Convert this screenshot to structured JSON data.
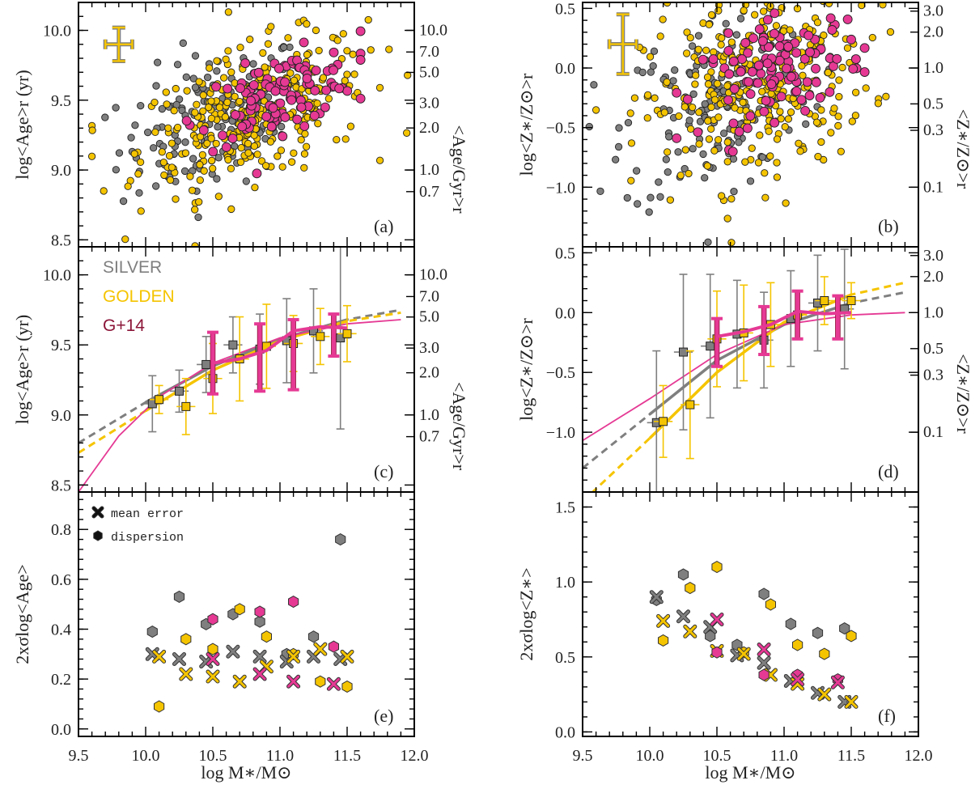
{
  "figure": {
    "xlabel": "log M∗/M⊙",
    "colors": {
      "silver": "#7f7f7f",
      "golden": "#f5c400",
      "g14": "#e53994",
      "g14_label": "#8b1538"
    }
  },
  "chart_data": [
    {
      "id": "a",
      "type": "scatter",
      "panel_label": "(a)",
      "xlim": [
        9.5,
        12.0
      ],
      "ylim": [
        8.45,
        10.2
      ],
      "ylabel": "log<Age>r (yr)",
      "ylabel_right": "<Age/Gyr>r",
      "yticks": [
        "8.5",
        "9.0",
        "9.5",
        "10.0"
      ],
      "right_ticks": [
        "0.7",
        "1.0",
        "2.0",
        "3.0",
        "5.0",
        "7.0",
        "10.0"
      ],
      "typical_error": {
        "x": 9.8,
        "y": 9.9,
        "xerr": 0.1,
        "yerr": 0.12
      },
      "clouds": [
        {
          "name": "SILVER",
          "n": 150,
          "x": [
            9.6,
            11.5
          ],
          "center": [
            10.5,
            9.35
          ],
          "spread": [
            0.35,
            0.25
          ]
        },
        {
          "name": "GOLDEN",
          "n": 320,
          "x": [
            9.6,
            11.95
          ],
          "center": [
            10.8,
            9.4
          ],
          "spread": [
            0.42,
            0.24
          ]
        },
        {
          "name": "G+14",
          "n": 110,
          "x": [
            10.1,
            11.6
          ],
          "center": [
            11.0,
            9.55
          ],
          "spread": [
            0.3,
            0.13
          ]
        }
      ]
    },
    {
      "id": "b",
      "type": "scatter",
      "panel_label": "(b)",
      "xlim": [
        9.5,
        12.0
      ],
      "ylim": [
        -1.5,
        0.55
      ],
      "ylabel": "log<Z∗/Z⊙>r",
      "ylabel_right": "<Z∗/Z⊙>r",
      "yticks": [
        "−1.0",
        "−0.5",
        "0.0",
        "0.5"
      ],
      "right_ticks": [
        "0.1",
        "0.3",
        "0.5",
        "1.0",
        "2.0",
        "3.0"
      ],
      "typical_error": {
        "x": 9.8,
        "y": 0.2,
        "xerr": 0.1,
        "yerr": 0.25
      },
      "clouds": [
        {
          "name": "SILVER",
          "n": 150,
          "x": [
            9.55,
            11.5
          ],
          "center": [
            10.5,
            -0.3
          ],
          "spread": [
            0.35,
            0.4
          ]
        },
        {
          "name": "GOLDEN",
          "n": 320,
          "x": [
            9.6,
            11.95
          ],
          "center": [
            10.8,
            -0.15
          ],
          "spread": [
            0.42,
            0.4
          ]
        },
        {
          "name": "G+14",
          "n": 110,
          "x": [
            10.2,
            11.6
          ],
          "center": [
            11.0,
            0.0
          ],
          "spread": [
            0.3,
            0.2
          ]
        }
      ]
    },
    {
      "id": "c",
      "type": "line",
      "panel_label": "(c)",
      "xlim": [
        9.5,
        12.0
      ],
      "ylim": [
        8.45,
        10.2
      ],
      "ylabel": "log<Age>r (yr)",
      "ylabel_right": "<Age/Gyr>r",
      "yticks": [
        "8.5",
        "9.0",
        "9.5",
        "10.0"
      ],
      "right_ticks": [
        "0.7",
        "1.0",
        "2.0",
        "3.0",
        "5.0",
        "7.0",
        "10.0"
      ],
      "legend": [
        "SILVER",
        "GOLDEN",
        "G+14"
      ],
      "series": [
        {
          "name": "SILVER",
          "x": [
            10.05,
            10.25,
            10.45,
            10.65,
            10.85,
            11.05,
            11.25,
            11.45
          ],
          "y": [
            9.08,
            9.17,
            9.36,
            9.5,
            9.47,
            9.53,
            9.6,
            9.55
          ],
          "yerr": [
            0.2,
            0.15,
            0.2,
            0.2,
            0.25,
            0.3,
            0.3,
            0.65
          ]
        },
        {
          "name": "GOLDEN",
          "x": [
            10.1,
            10.3,
            10.5,
            10.7,
            10.9,
            11.1,
            11.3,
            11.5
          ],
          "y": [
            9.11,
            9.06,
            9.26,
            9.4,
            9.49,
            9.51,
            9.56,
            9.58
          ],
          "yerr": [
            0.1,
            0.2,
            0.25,
            0.3,
            0.3,
            0.2,
            0.2,
            0.2
          ]
        },
        {
          "name": "G+14",
          "x": [
            10.5,
            10.85,
            11.1,
            11.4
          ],
          "y": [
            9.37,
            9.41,
            9.43,
            9.57
          ],
          "yerr": [
            0.22,
            0.24,
            0.25,
            0.15
          ]
        },
        {
          "name": "G+14 mean",
          "x": [
            10.5,
            10.7,
            10.9,
            11.1,
            11.3,
            11.5
          ],
          "y": [
            9.37,
            9.4,
            9.46,
            9.6,
            9.63,
            9.62
          ]
        },
        {
          "name": "SILVER fit",
          "x": [
            9.5,
            10.0,
            10.5,
            11.0,
            11.5,
            11.9
          ],
          "y": [
            8.8,
            9.09,
            9.35,
            9.54,
            9.68,
            9.75
          ]
        },
        {
          "name": "GOLDEN fit",
          "x": [
            9.5,
            10.0,
            10.5,
            11.0,
            11.5,
            11.9
          ],
          "y": [
            8.73,
            9.03,
            9.32,
            9.53,
            9.67,
            9.73
          ]
        },
        {
          "name": "G+14 fit",
          "x": [
            9.5,
            9.8,
            10.1,
            10.5,
            11.0,
            11.5,
            11.9
          ],
          "y": [
            8.45,
            8.85,
            9.13,
            9.37,
            9.55,
            9.65,
            9.68
          ]
        }
      ]
    },
    {
      "id": "d",
      "type": "line",
      "panel_label": "(d)",
      "xlim": [
        9.5,
        12.0
      ],
      "ylim": [
        -1.5,
        0.55
      ],
      "ylabel": "log<Z∗/Z⊙>r",
      "ylabel_right": "<Z∗/Z⊙>r",
      "yticks": [
        "−1.0",
        "−0.5",
        "0.0",
        "0.5"
      ],
      "right_ticks": [
        "0.1",
        "0.3",
        "0.5",
        "1.0",
        "2.0",
        "3.0"
      ],
      "series": [
        {
          "name": "SILVER",
          "x": [
            10.05,
            10.25,
            10.45,
            10.65,
            10.85,
            11.05,
            11.25,
            11.45
          ],
          "y": [
            -0.92,
            -0.33,
            -0.28,
            -0.18,
            -0.23,
            -0.05,
            0.08,
            0.03
          ],
          "yerr": [
            0.6,
            0.65,
            0.6,
            0.45,
            0.4,
            0.4,
            0.4,
            0.5
          ]
        },
        {
          "name": "GOLDEN",
          "x": [
            10.1,
            10.3,
            10.5,
            10.7,
            10.9,
            11.1,
            11.3,
            11.5
          ],
          "y": [
            -0.91,
            -0.77,
            -0.22,
            -0.17,
            -0.1,
            -0.02,
            0.1,
            0.1
          ],
          "yerr": [
            0.3,
            0.45,
            0.4,
            0.4,
            0.35,
            0.2,
            0.2,
            0.15
          ]
        },
        {
          "name": "G+14",
          "x": [
            10.5,
            10.85,
            11.1,
            11.4
          ],
          "y": [
            -0.25,
            -0.15,
            -0.02,
            -0.04
          ],
          "yerr": [
            0.2,
            0.2,
            0.2,
            0.18
          ]
        },
        {
          "name": "G+14 mean",
          "x": [
            10.5,
            10.7,
            10.9,
            11.1,
            11.3,
            11.5
          ],
          "y": [
            -0.2,
            -0.16,
            -0.1,
            0.01,
            -0.01,
            0.0
          ]
        },
        {
          "name": "SILVER fit",
          "x": [
            9.5,
            10.0,
            10.5,
            11.0,
            11.5,
            11.9
          ],
          "y": [
            -1.3,
            -0.85,
            -0.4,
            -0.1,
            0.08,
            0.17
          ]
        },
        {
          "name": "GOLDEN fit",
          "x": [
            9.5,
            10.0,
            10.5,
            11.0,
            11.5,
            11.9
          ],
          "y": [
            -1.58,
            -1.05,
            -0.5,
            -0.08,
            0.15,
            0.25
          ]
        },
        {
          "name": "G+14 fit",
          "x": [
            9.5,
            10.0,
            10.5,
            11.0,
            11.5,
            11.9
          ],
          "y": [
            -1.07,
            -0.72,
            -0.35,
            -0.1,
            -0.02,
            0.0
          ]
        }
      ]
    },
    {
      "id": "e",
      "type": "scatter",
      "panel_label": "(e)",
      "xlim": [
        9.5,
        12.0
      ],
      "ylim": [
        -0.03,
        0.95
      ],
      "ylabel": "2xσlog<Age>",
      "yticks": [
        "0.0",
        "0.2",
        "0.4",
        "0.6",
        "0.8"
      ],
      "legend": [
        "mean error",
        "dispersion"
      ],
      "series": [
        {
          "name": "SILVER",
          "x": [
            10.05,
            10.25,
            10.45,
            10.65,
            10.85,
            11.05,
            11.25,
            11.45
          ],
          "dispersion": [
            0.39,
            0.53,
            0.42,
            0.46,
            0.43,
            0.3,
            0.37,
            0.76
          ],
          "mean_error": [
            0.3,
            0.28,
            0.27,
            0.31,
            0.29,
            0.27,
            0.29,
            0.28
          ]
        },
        {
          "name": "GOLDEN",
          "x": [
            10.1,
            10.3,
            10.5,
            10.7,
            10.9,
            11.1,
            11.3,
            11.5
          ],
          "dispersion": [
            0.09,
            0.36,
            0.32,
            0.48,
            0.37,
            0.3,
            0.19,
            0.17
          ],
          "mean_error": [
            0.29,
            0.22,
            0.21,
            0.19,
            0.25,
            0.29,
            0.32,
            0.29
          ]
        },
        {
          "name": "G+14",
          "x": [
            10.5,
            10.85,
            11.1,
            11.4
          ],
          "dispersion": [
            0.44,
            0.47,
            0.51,
            0.33
          ],
          "mean_error": [
            0.28,
            0.22,
            0.19,
            0.18
          ]
        }
      ]
    },
    {
      "id": "f",
      "type": "scatter",
      "panel_label": "(f)",
      "xlim": [
        9.5,
        12.0
      ],
      "ylim": [
        -0.03,
        1.6
      ],
      "ylabel": "2xσlog<Z∗>",
      "yticks": [
        "0.0",
        "0.5",
        "1.0",
        "1.5"
      ],
      "series": [
        {
          "name": "SILVER",
          "x": [
            10.05,
            10.25,
            10.45,
            10.65,
            10.85,
            11.05,
            11.25,
            11.45
          ],
          "dispersion": [
            0.88,
            1.05,
            0.64,
            0.58,
            0.92,
            0.72,
            0.66,
            0.69
          ],
          "mean_error": [
            0.9,
            0.77,
            0.7,
            0.51,
            0.46,
            0.34,
            0.26,
            0.2
          ]
        },
        {
          "name": "GOLDEN",
          "x": [
            10.1,
            10.3,
            10.5,
            10.7,
            10.9,
            11.1,
            11.3,
            11.5
          ],
          "dispersion": [
            0.61,
            0.96,
            1.1,
            0.53,
            0.85,
            0.58,
            0.52,
            0.64
          ],
          "mean_error": [
            0.74,
            0.67,
            0.54,
            0.52,
            0.38,
            0.32,
            0.25,
            0.2
          ]
        },
        {
          "name": "G+14",
          "x": [
            10.5,
            10.85,
            11.1,
            11.4
          ],
          "dispersion": [
            0.53,
            0.38,
            0.38,
            0.35
          ],
          "mean_error": [
            0.75,
            0.55,
            0.35,
            0.33
          ]
        }
      ]
    }
  ]
}
